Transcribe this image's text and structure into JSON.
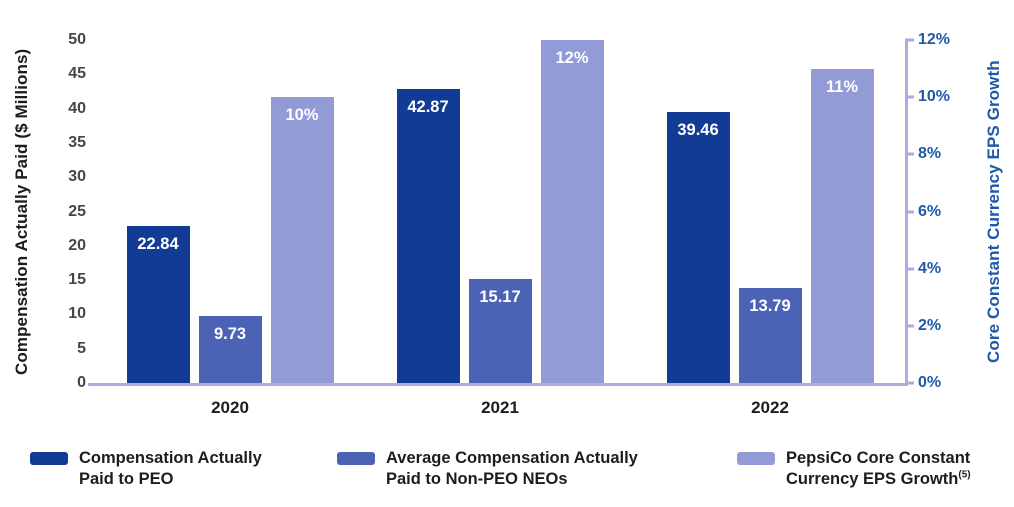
{
  "chart_data": {
    "type": "bar",
    "title": "",
    "categories": [
      "2020",
      "2021",
      "2022"
    ],
    "series": [
      {
        "key": "peo",
        "name": "Compensation Actually Paid to PEO",
        "axis": "left",
        "color": "#113b94",
        "values": [
          22.84,
          42.87,
          39.46
        ],
        "labels": [
          "22.84",
          "42.87",
          "39.46"
        ]
      },
      {
        "key": "non-peo-neos",
        "name": "Average Compensation Actually Paid to Non-PEO NEOs",
        "axis": "left",
        "color": "#4c63b5",
        "values": [
          9.73,
          15.17,
          13.79
        ],
        "labels": [
          "9.73",
          "15.17",
          "13.79"
        ]
      },
      {
        "key": "eps-growth",
        "name": "PepsiCo Core Constant Currency EPS Growth(5)",
        "axis": "right",
        "color": "#929bd6",
        "values": [
          10,
          12,
          11
        ],
        "labels": [
          "10%",
          "12%",
          "11%"
        ]
      }
    ],
    "left_axis": {
      "label": "Compensation Actually Paid ($ Millions)",
      "min": 0,
      "max": 50,
      "step": 5,
      "ticks": [
        "0",
        "5",
        "10",
        "15",
        "20",
        "25",
        "30",
        "35",
        "40",
        "45",
        "50"
      ]
    },
    "right_axis": {
      "label": "Core Constant Currency EPS Growth",
      "min": 0,
      "max": 12,
      "step": 2,
      "ticks": [
        "0%",
        "2%",
        "4%",
        "6%",
        "8%",
        "10%",
        "12%"
      ]
    },
    "grid": false,
    "legend_position": "bottom"
  },
  "legend": {
    "items": [
      {
        "line1": "Compensation Actually",
        "line2": "Paid to PEO"
      },
      {
        "line1": "Average Compensation Actually",
        "line2": "Paid to Non-PEO NEOs"
      },
      {
        "line1": "PepsiCo Core Constant",
        "line2": "Currency EPS Growth",
        "sup": "(5)"
      }
    ]
  },
  "colors": {
    "axis_line": "#a9aedd",
    "right_axis_text": "#1f5aa8",
    "left_tick_text": "#464646",
    "text_dark": "#1d1d1b",
    "bar_label_text": "#ffffff"
  }
}
